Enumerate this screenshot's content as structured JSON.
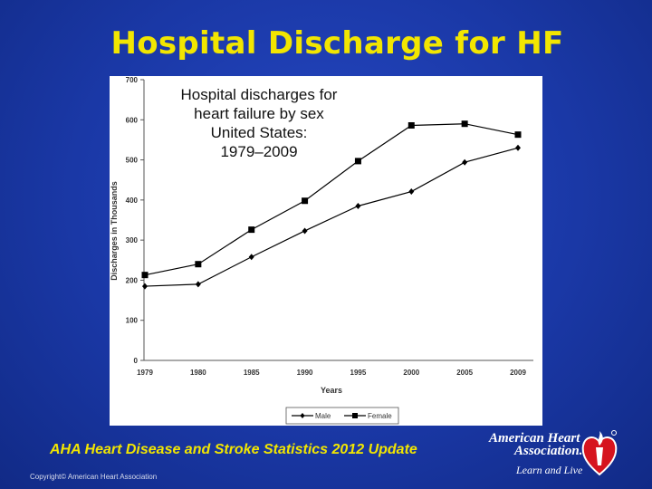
{
  "slide": {
    "title": "Hospital Discharge for HF",
    "source": "AHA Heart Disease and Stroke Statistics 2012 Update",
    "copyright": "Copyright© American Heart Association",
    "logo": {
      "line1": "American Heart",
      "line2": "Association.",
      "line3": "Learn and Live"
    }
  },
  "chart_data": {
    "type": "line",
    "title": "Hospital discharges for heart failure by sex United States: 1979–2009",
    "title_lines": [
      "Hospital discharges for",
      "heart failure by sex",
      "United States:",
      "1979–2009"
    ],
    "xlabel": "Years",
    "ylabel": "Discharges in Thousands",
    "categories": [
      "1979",
      "1980",
      "1985",
      "1990",
      "1995",
      "2000",
      "2005",
      "2009"
    ],
    "ylim": [
      0,
      700
    ],
    "yticks": [
      0,
      100,
      200,
      300,
      400,
      500,
      600,
      700
    ],
    "grid": false,
    "legend_placement": "bottom",
    "series": [
      {
        "name": "Male",
        "marker": "diamond",
        "values": [
          185,
          190,
          258,
          323,
          385,
          421,
          494,
          530
        ]
      },
      {
        "name": "Female",
        "marker": "square",
        "values": [
          213,
          240,
          326,
          398,
          497,
          586,
          590,
          563
        ]
      }
    ],
    "colors": {
      "line": "#000000"
    }
  }
}
